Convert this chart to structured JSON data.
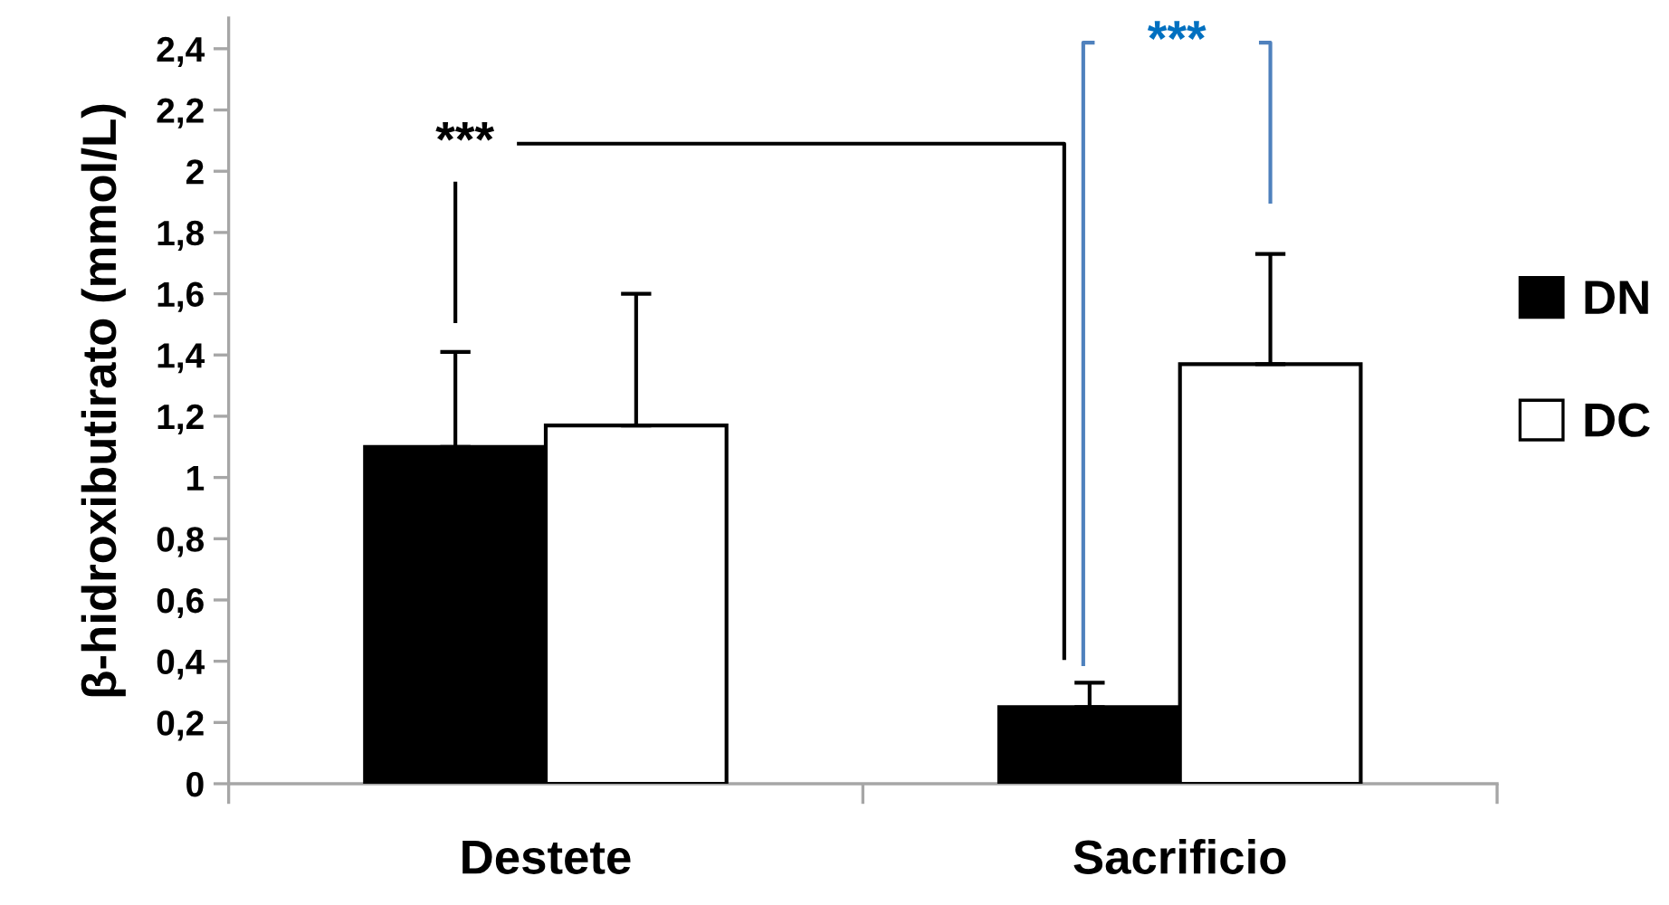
{
  "chart_data": {
    "type": "bar",
    "ylabel": "β-hidroxibutirato (mmol/L)",
    "categories": [
      "Destete",
      "Sacrificio"
    ],
    "series": [
      {
        "name": "DN",
        "color": "#000000",
        "values": [
          1.1,
          0.25
        ],
        "errors": [
          [
            1.1,
            1.41
          ],
          [
            0.25,
            0.33
          ]
        ]
      },
      {
        "name": "DC",
        "color": "#ffffff",
        "values": [
          1.17,
          1.37
        ],
        "errors": [
          [
            1.17,
            1.6
          ],
          [
            1.37,
            1.73
          ]
        ]
      }
    ],
    "ylim": [
      0,
      2.5
    ],
    "yticks": [
      0,
      {
        "value": 0.2,
        "label": "0,2"
      },
      {
        "value": 0.4,
        "label": "0,4"
      },
      {
        "value": 0.6,
        "label": "0,6"
      },
      {
        "value": 0.8,
        "label": "0,8"
      },
      1,
      {
        "value": 1.2,
        "label": "1,2"
      },
      {
        "value": 1.4,
        "label": "1,4"
      },
      {
        "value": 1.6,
        "label": "1,6"
      },
      {
        "value": 1.8,
        "label": "1,8"
      },
      2,
      {
        "value": 2.2,
        "label": "2,2"
      },
      {
        "value": 2.4,
        "label": "2,4"
      }
    ],
    "annotations": [
      "***",
      "***"
    ],
    "legend": "right",
    "grid": false
  }
}
